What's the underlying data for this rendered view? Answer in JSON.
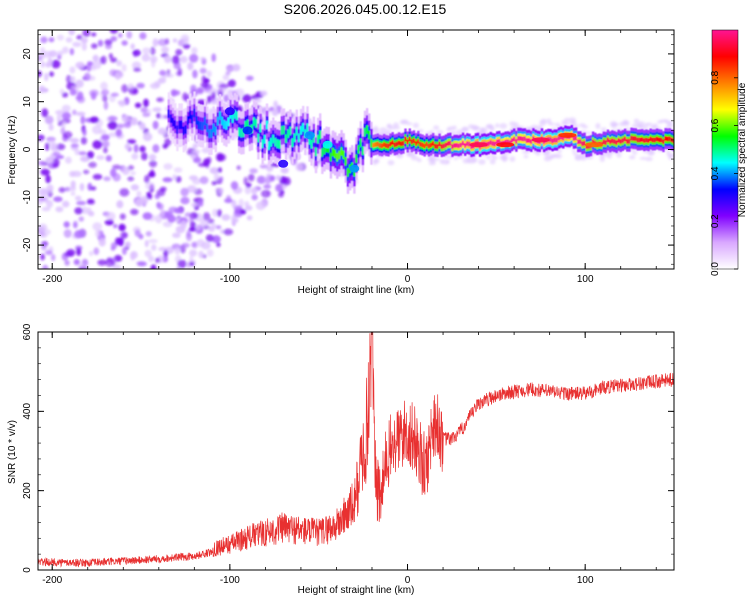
{
  "title": "S206.2026.045.00.12.E15",
  "chart_data": [
    {
      "type": "heatmap",
      "title": "S206.2026.045.00.12.E15",
      "xlabel": "Height of straight line (km)",
      "ylabel": "Frequency (Hz)",
      "xlim": [
        -208,
        150
      ],
      "ylim": [
        -25,
        25
      ],
      "x_ticks": [
        -200,
        -100,
        0,
        100
      ],
      "y_ticks": [
        -20,
        -10,
        0,
        10,
        20
      ],
      "colorbar": {
        "label": "Normalized spectral amplitude",
        "range": [
          0,
          1
        ],
        "ticks": [
          "0.0",
          "0.2",
          "0.4",
          "0.6",
          "0.8"
        ],
        "tick_values": [
          0.0,
          0.2,
          0.4,
          0.6,
          0.8
        ],
        "colors": [
          "#ffffff",
          "#d9a8ff",
          "#8000ff",
          "#0000ff",
          "#00ffff",
          "#00ff00",
          "#ffff00",
          "#ff8000",
          "#ff0000",
          "#ff1493"
        ]
      },
      "ridge": {
        "description": "dominant frequency ridge",
        "x": [
          -130,
          -110,
          -100,
          -90,
          -80,
          -70,
          -60,
          -50,
          -40,
          -30,
          -25,
          -20,
          -10,
          0,
          10,
          20,
          40,
          60,
          80,
          90,
          100,
          120,
          150
        ],
        "y": [
          6,
          5,
          7,
          4,
          3,
          2,
          3,
          1,
          -1,
          -4,
          3,
          1,
          1,
          2,
          1,
          1,
          1,
          2,
          2,
          3,
          1,
          2,
          2
        ],
        "amplitude": [
          0.3,
          0.4,
          0.45,
          0.5,
          0.45,
          0.5,
          0.45,
          0.5,
          0.6,
          0.55,
          0.5,
          0.6,
          0.7,
          0.7,
          0.65,
          0.75,
          0.9,
          0.8,
          0.9,
          0.85,
          0.75,
          0.75,
          0.7
        ]
      }
    },
    {
      "type": "line",
      "xlabel": "Height of straight line (km)",
      "ylabel": "SNR (10 * v/v)",
      "xlim": [
        -208,
        150
      ],
      "ylim": [
        0,
        600
      ],
      "x_ticks": [
        -200,
        -100,
        0,
        100
      ],
      "y_ticks": [
        0,
        200,
        400,
        600
      ],
      "color": "#e83030",
      "series": [
        {
          "name": "SNR",
          "x": [
            -208,
            -180,
            -150,
            -120,
            -110,
            -100,
            -90,
            -80,
            -70,
            -60,
            -50,
            -40,
            -30,
            -25,
            -22,
            -20,
            -18,
            -15,
            -12,
            -10,
            -5,
            0,
            5,
            10,
            15,
            20,
            25,
            30,
            40,
            50,
            60,
            70,
            80,
            90,
            100,
            110,
            120,
            130,
            140,
            150
          ],
          "y": [
            20,
            18,
            25,
            35,
            45,
            55,
            70,
            80,
            90,
            85,
            80,
            95,
            140,
            250,
            330,
            600,
            220,
            170,
            280,
            300,
            330,
            350,
            320,
            250,
            380,
            330,
            330,
            350,
            420,
            440,
            450,
            455,
            450,
            445,
            445,
            460,
            465,
            470,
            475,
            480
          ]
        }
      ]
    }
  ]
}
